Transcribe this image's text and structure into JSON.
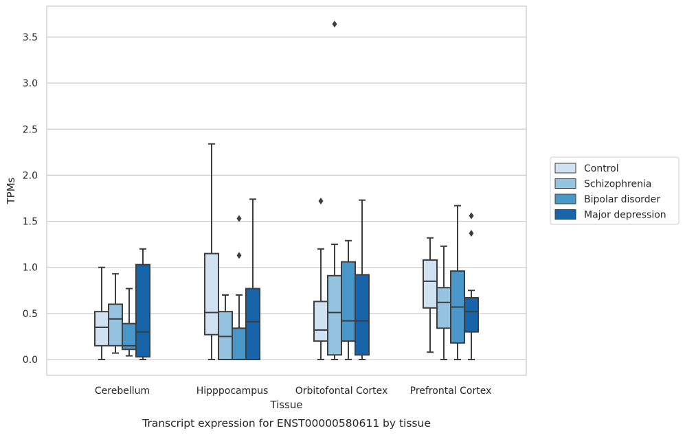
{
  "chart_data": {
    "type": "boxplot",
    "title": "",
    "caption": "Transcript expression for ENST00000580611 by tissue",
    "xlabel": "Tissue",
    "ylabel": "TPMs",
    "ylim": [
      -0.18,
      3.83
    ],
    "yticks": [
      "0.0",
      "0.5",
      "1.0",
      "1.5",
      "2.0",
      "2.5",
      "3.0",
      "3.5"
    ],
    "ytick_values": [
      0,
      0.5,
      1.0,
      1.5,
      2.0,
      2.5,
      3.0,
      3.5
    ],
    "grid": true,
    "legend_position": "right",
    "categories": [
      "Cerebellum",
      "Hipppocampus",
      "Orbitofontal Cortex",
      "Prefrontal Cortex"
    ],
    "series": [
      {
        "name": "Control",
        "color": "#d0e1f2",
        "boxes": [
          {
            "whislo": 0.0,
            "q1": 0.15,
            "med": 0.35,
            "q3": 0.52,
            "whishi": 1.0,
            "fliers": []
          },
          {
            "whislo": 0.0,
            "q1": 0.27,
            "med": 0.51,
            "q3": 1.15,
            "whishi": 2.34,
            "fliers": []
          },
          {
            "whislo": 0.0,
            "q1": 0.2,
            "med": 0.32,
            "q3": 0.63,
            "whishi": 1.2,
            "fliers": [
              1.72
            ]
          },
          {
            "whislo": 0.08,
            "q1": 0.56,
            "med": 0.85,
            "q3": 1.08,
            "whishi": 1.32,
            "fliers": []
          }
        ]
      },
      {
        "name": "Schizophrenia",
        "color": "#94c4df",
        "boxes": [
          {
            "whislo": 0.07,
            "q1": 0.15,
            "med": 0.44,
            "q3": 0.6,
            "whishi": 0.93,
            "fliers": []
          },
          {
            "whislo": 0.0,
            "q1": 0.0,
            "med": 0.25,
            "q3": 0.52,
            "whishi": 0.7,
            "fliers": []
          },
          {
            "whislo": 0.0,
            "q1": 0.05,
            "med": 0.51,
            "q3": 0.91,
            "whishi": 1.25,
            "fliers": [
              3.64
            ]
          },
          {
            "whislo": 0.0,
            "q1": 0.34,
            "med": 0.62,
            "q3": 0.78,
            "whishi": 1.23,
            "fliers": []
          }
        ]
      },
      {
        "name": "Bipolar disorder",
        "color": "#4a98c9",
        "boxes": [
          {
            "whislo": 0.04,
            "q1": 0.11,
            "med": 0.15,
            "q3": 0.39,
            "whishi": 0.77,
            "fliers": []
          },
          {
            "whislo": 0.0,
            "q1": 0.0,
            "med": 0.0,
            "q3": 0.34,
            "whishi": 0.7,
            "fliers": [
              1.13,
              1.53
            ]
          },
          {
            "whislo": 0.0,
            "q1": 0.2,
            "med": 0.42,
            "q3": 1.06,
            "whishi": 1.29,
            "fliers": []
          },
          {
            "whislo": 0.0,
            "q1": 0.18,
            "med": 0.57,
            "q3": 0.96,
            "whishi": 1.67,
            "fliers": []
          }
        ]
      },
      {
        "name": "Major depression",
        "color": "#1764ab",
        "boxes": [
          {
            "whislo": 0.0,
            "q1": 0.03,
            "med": 0.3,
            "q3": 1.03,
            "whishi": 1.2,
            "fliers": []
          },
          {
            "whislo": 0.0,
            "q1": 0.0,
            "med": 0.41,
            "q3": 0.77,
            "whishi": 1.74,
            "fliers": []
          },
          {
            "whislo": 0.0,
            "q1": 0.05,
            "med": 0.42,
            "q3": 0.92,
            "whishi": 1.73,
            "fliers": []
          },
          {
            "whislo": 0.0,
            "q1": 0.3,
            "med": 0.52,
            "q3": 0.67,
            "whishi": 0.75,
            "fliers": [
              1.37,
              1.56
            ]
          }
        ]
      }
    ]
  }
}
